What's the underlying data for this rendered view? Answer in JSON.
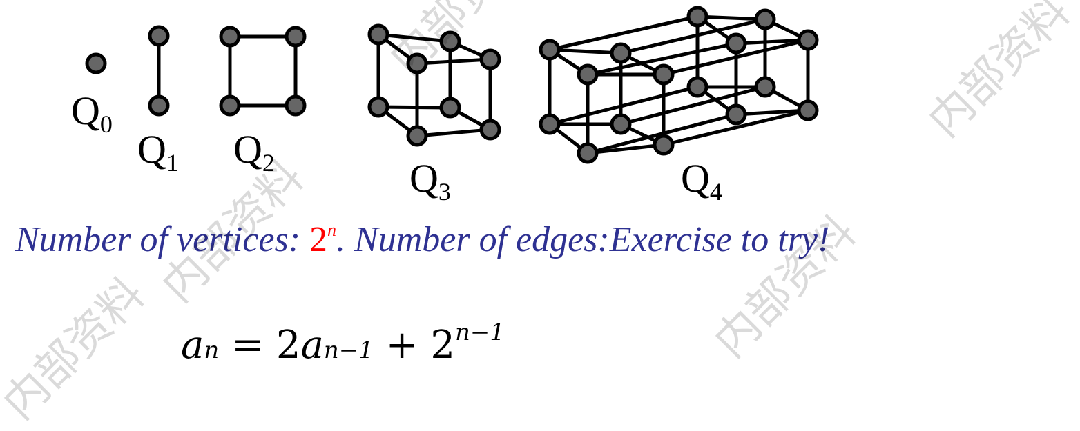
{
  "labels": {
    "q0": {
      "base": "Q",
      "sub": "0"
    },
    "q1": {
      "base": "Q",
      "sub": "1"
    },
    "q2": {
      "base": "Q",
      "sub": "2"
    },
    "q3": {
      "base": "Q",
      "sub": "3"
    },
    "q4": {
      "base": "Q",
      "sub": "4"
    }
  },
  "text_line": {
    "part1": "Number of vertices: ",
    "two": "2",
    "exp": "n",
    "part2": ".  Number of edges:Exercise to try!"
  },
  "formula": {
    "a": "a",
    "sub_n": "n",
    "eq": " = 2",
    "a2": "a",
    "sub_nm1": "n−1",
    "plus": " + 2",
    "sup": "n−1"
  },
  "watermark": "内部资料",
  "colors": {
    "vertex_fill": "#666666",
    "edge": "#000000",
    "text_blue": "#2e3192",
    "accent_red": "#ff0000"
  }
}
